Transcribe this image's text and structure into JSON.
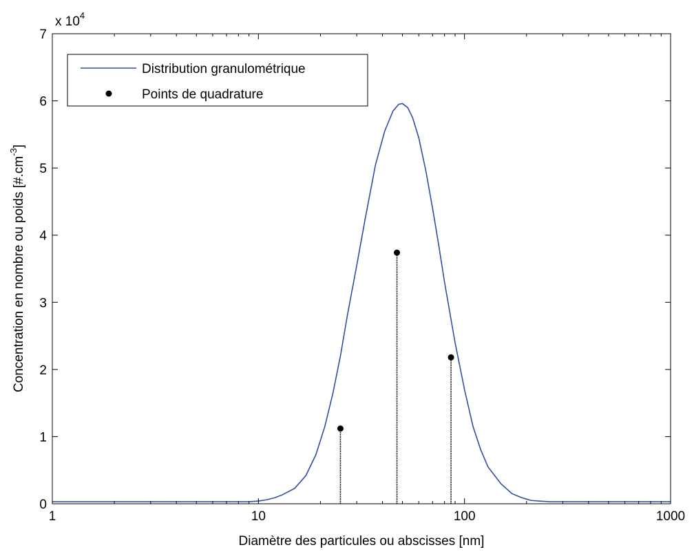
{
  "chart_data": {
    "type": "line",
    "title": "",
    "xlabel": "Diamètre des particules ou abscisses [nm]",
    "ylabel": "Concentration en nombre ou poids [#.cm",
    "ylabel_sup": "-3",
    "ylabel_end": "]",
    "x_scale": "log",
    "xlim": [
      1,
      1000
    ],
    "ylim": [
      0,
      70000
    ],
    "y_multiplier": "x 10",
    "y_multiplier_exp": "4",
    "x_tick_values": [
      1,
      10,
      100,
      1000
    ],
    "x_tick_labels": [
      "1",
      "10",
      "100",
      "1000"
    ],
    "y_tick_values": [
      0,
      10000,
      20000,
      30000,
      40000,
      50000,
      60000,
      70000
    ],
    "y_tick_labels": [
      "0",
      "1",
      "2",
      "3",
      "4",
      "5",
      "6",
      "7"
    ],
    "grid": false,
    "legend_position": "top-left",
    "series": [
      {
        "name": "Distribution granulométrique",
        "kind": "line",
        "color": "#2e4ea3",
        "x": [
          1,
          2,
          5,
          9,
          10,
          11,
          12,
          13,
          15,
          17,
          19,
          21,
          23,
          25,
          27,
          30,
          33,
          37,
          41,
          45,
          48,
          50,
          53,
          56,
          60,
          65,
          70,
          75,
          80,
          90,
          100,
          110,
          120,
          130,
          150,
          170,
          190,
          210,
          230,
          260,
          300,
          500,
          1000
        ],
        "y": [
          300,
          300,
          300,
          300,
          400,
          600,
          900,
          1300,
          2300,
          4200,
          7300,
          11500,
          16500,
          22000,
          28000,
          35500,
          42500,
          50500,
          55500,
          58500,
          59500,
          59600,
          59000,
          57500,
          54500,
          49500,
          44000,
          38500,
          33000,
          24000,
          17000,
          11500,
          8000,
          5500,
          3000,
          1500,
          900,
          500,
          400,
          300,
          300,
          300,
          300
        ]
      },
      {
        "name": "Points de quadrature",
        "kind": "stem",
        "color": "#000000",
        "x": [
          25,
          47,
          86
        ],
        "y": [
          11200,
          37400,
          21800
        ]
      }
    ]
  }
}
